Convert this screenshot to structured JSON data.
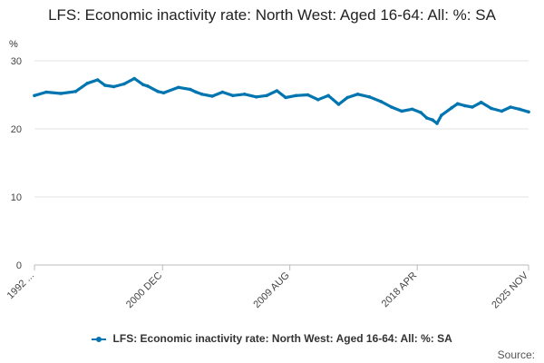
{
  "chart_data": {
    "type": "line",
    "title": "LFS: Economic inactivity rate: North West: Aged 16-64: All: %: SA",
    "ylabel": "%",
    "xlabel": "",
    "ylim": [
      0,
      30
    ],
    "yticks": [
      0,
      10,
      20,
      30
    ],
    "xtick_labels": [
      "1992 ...",
      "2000 DEC",
      "2009 AUG",
      "2018 APR",
      "2025 NOV"
    ],
    "xtick_years": [
      1992.2,
      2000.92,
      2009.58,
      2018.25,
      2025.83
    ],
    "x_range": [
      1992.2,
      2025.83
    ],
    "grid": "horizontal",
    "legend_position": "bottom",
    "series": [
      {
        "name": "LFS: Economic inactivity rate: North West: Aged 16-64: All: %: SA",
        "color": "#0075b0",
        "x": [
          1992.2,
          1993.0,
          1994.0,
          1995.0,
          1995.8,
          1996.5,
          1997.0,
          1997.6,
          1998.3,
          1999.0,
          1999.6,
          1999.9,
          2000.6,
          2001.0,
          2002.0,
          2002.8,
          2003.2,
          2003.6,
          2004.3,
          2005.0,
          2005.7,
          2006.5,
          2007.3,
          2008.0,
          2008.7,
          2009.3,
          2010.0,
          2010.8,
          2011.5,
          2012.2,
          2012.9,
          2013.5,
          2014.2,
          2015.0,
          2015.8,
          2016.5,
          2017.2,
          2017.9,
          2018.5,
          2018.9,
          2019.3,
          2019.6,
          2019.9,
          2020.6,
          2021.0,
          2021.5,
          2022.0,
          2022.6,
          2023.3,
          2024.0,
          2024.6,
          2025.2,
          2025.83
        ],
        "values": [
          24.9,
          25.4,
          25.2,
          25.5,
          26.7,
          27.2,
          26.4,
          26.2,
          26.6,
          27.4,
          26.5,
          26.3,
          25.5,
          25.3,
          26.1,
          25.8,
          25.4,
          25.1,
          24.8,
          25.4,
          24.9,
          25.1,
          24.7,
          24.9,
          25.6,
          24.6,
          24.9,
          25.0,
          24.3,
          24.9,
          23.6,
          24.6,
          25.1,
          24.7,
          24.0,
          23.2,
          22.6,
          22.9,
          22.4,
          21.6,
          21.3,
          20.8,
          22.0,
          23.1,
          23.7,
          23.4,
          23.2,
          23.9,
          23.0,
          22.6,
          23.2,
          22.9,
          22.5
        ]
      }
    ]
  },
  "source_label": "Source:"
}
